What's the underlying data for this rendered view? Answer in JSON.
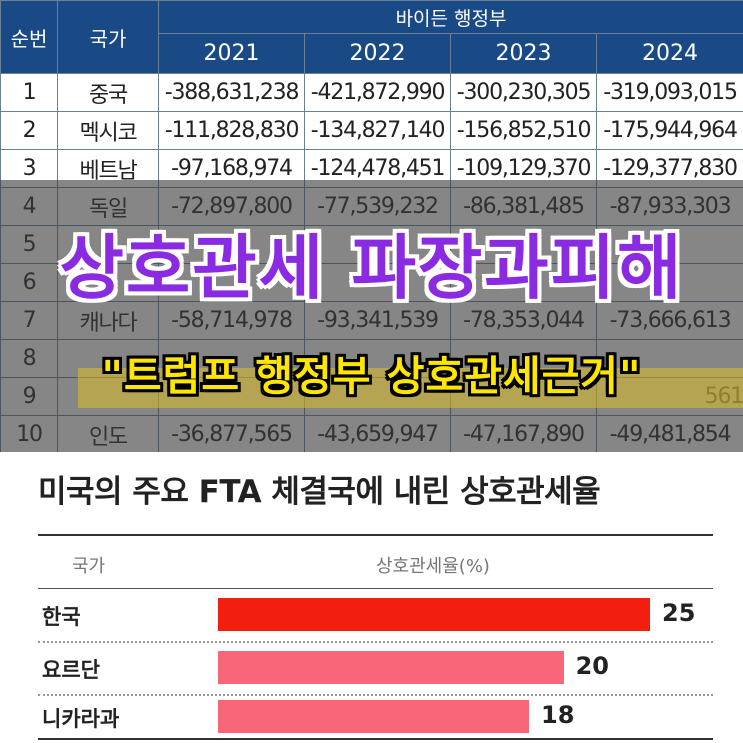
{
  "table": {
    "col_rank": "순번",
    "col_country": "국가",
    "group_label": "바이든 행정부",
    "years": [
      "2021",
      "2022",
      "2023",
      "2024"
    ],
    "rows": [
      {
        "rank": "1",
        "country": "중국",
        "values": [
          "-388,631,238",
          "-421,872,990",
          "-300,230,305",
          "-319,093,015"
        ]
      },
      {
        "rank": "2",
        "country": "멕시코",
        "values": [
          "-111,828,830",
          "-134,827,140",
          "-156,852,510",
          "-175,944,964"
        ]
      },
      {
        "rank": "3",
        "country": "베트남",
        "values": [
          "-97,168,974",
          "-124,478,451",
          "-109,129,370",
          "-129,377,830"
        ]
      },
      {
        "rank": "4",
        "country": "독일",
        "values": [
          "-72,897,800",
          "-77,539,232",
          "-86,381,485",
          "-87,933,303"
        ]
      },
      {
        "rank": "5",
        "country": "",
        "values": [
          "",
          "",
          "",
          ""
        ]
      },
      {
        "rank": "6",
        "country": "",
        "values": [
          "",
          "",
          "",
          ""
        ]
      },
      {
        "rank": "7",
        "country": "캐나다",
        "values": [
          "-58,714,978",
          "-93,341,539",
          "-78,353,044",
          "-73,666,613"
        ]
      },
      {
        "rank": "8",
        "country": "",
        "values": [
          "",
          "",
          "",
          ""
        ]
      },
      {
        "rank": "9",
        "country": "",
        "values": [
          "",
          "",
          "",
          "561"
        ]
      },
      {
        "rank": "10",
        "country": "인도",
        "values": [
          "-36,877,565",
          "-43,659,947",
          "-47,167,890",
          "-49,481,854"
        ]
      }
    ]
  },
  "overlay": {
    "title": "상호관세 파장과피해",
    "subtitle": "\"트럼프 행정부 상호관세근거\""
  },
  "chart_data": {
    "type": "bar",
    "title": "미국의 주요 FTA 체결국에 내린 상호관세율",
    "header_category": "국가",
    "header_value": "상호관세율(%)",
    "categories": [
      "한국",
      "요르단",
      "니카라과"
    ],
    "values": [
      25,
      20,
      18
    ],
    "colors": [
      "#f21f10",
      "#f86679",
      "#f86679"
    ]
  }
}
